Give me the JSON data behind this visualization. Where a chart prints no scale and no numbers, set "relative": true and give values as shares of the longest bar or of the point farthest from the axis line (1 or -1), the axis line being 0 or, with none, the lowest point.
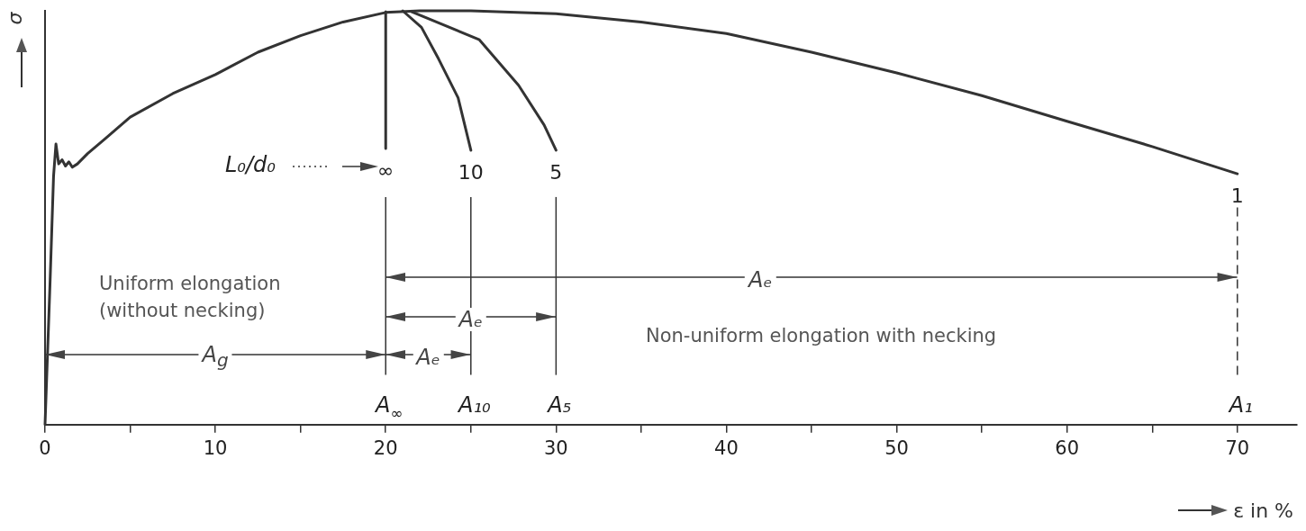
{
  "chart_data": {
    "type": "line",
    "relative": true,
    "xlabel": "ε in %",
    "ylabel": "σ",
    "xlim": [
      0,
      73.5
    ],
    "xticks": [
      0,
      {
        "value": 5,
        "label": null
      },
      10,
      {
        "value": 15,
        "label": null
      },
      20,
      {
        "value": 25,
        "label": null
      },
      30,
      {
        "value": 35,
        "label": null
      },
      40,
      {
        "value": 45,
        "label": null
      },
      50,
      {
        "value": 55,
        "label": null
      },
      60,
      {
        "value": 65,
        "label": null
      },
      70
    ],
    "series": [
      {
        "name": "1",
        "color": "#333333",
        "x": [
          0,
          0.3,
          0.5,
          0.64,
          0.8,
          1.0,
          1.2,
          1.4,
          1.6,
          1.9,
          2.5,
          3.5,
          5,
          7.5,
          10,
          12.5,
          15,
          17.5,
          20,
          22,
          25,
          30,
          35,
          40,
          45,
          50,
          55,
          60,
          65,
          70
        ],
        "values": [
          0,
          0.35,
          0.6,
          0.678,
          0.63,
          0.64,
          0.625,
          0.635,
          0.622,
          0.63,
          0.655,
          0.69,
          0.743,
          0.8,
          0.846,
          0.9,
          0.94,
          0.973,
          0.996,
          1.0,
          1.0,
          0.993,
          0.973,
          0.945,
          0.9,
          0.85,
          0.795,
          0.733,
          0.672,
          0.606
        ]
      },
      {
        "name": "∞",
        "color": "#333333",
        "x": [
          20,
          20
        ],
        "values": [
          0.998,
          0.667
        ]
      },
      {
        "name": "10",
        "color": "#333333",
        "x": [
          21,
          22.1,
          23.1,
          24.25,
          25
        ],
        "values": [
          1.0,
          0.96,
          0.884,
          0.79,
          0.663
        ]
      },
      {
        "name": "5",
        "color": "#333333",
        "x": [
          21.5,
          25.5,
          27.8,
          29.3,
          30
        ],
        "values": [
          0.998,
          0.93,
          0.82,
          0.724,
          0.663
        ]
      }
    ],
    "ref_lines": [
      {
        "axis": "x",
        "value": 20,
        "label": "A$_{∞}$"
      },
      {
        "axis": "x",
        "value": 25,
        "label": "A₁₀"
      },
      {
        "axis": "x",
        "value": 30,
        "label": "A₅"
      },
      {
        "axis": "x",
        "value": 70,
        "label": "A₁",
        "line_style": "dashed"
      }
    ],
    "annotations": [
      "L₀/d₀",
      "Uniform elongation\n(without necking)",
      "Non-uniform elongation with necking",
      "A$_{g}$",
      "Aₑ",
      "Aₑ",
      "Aₑ"
    ]
  }
}
